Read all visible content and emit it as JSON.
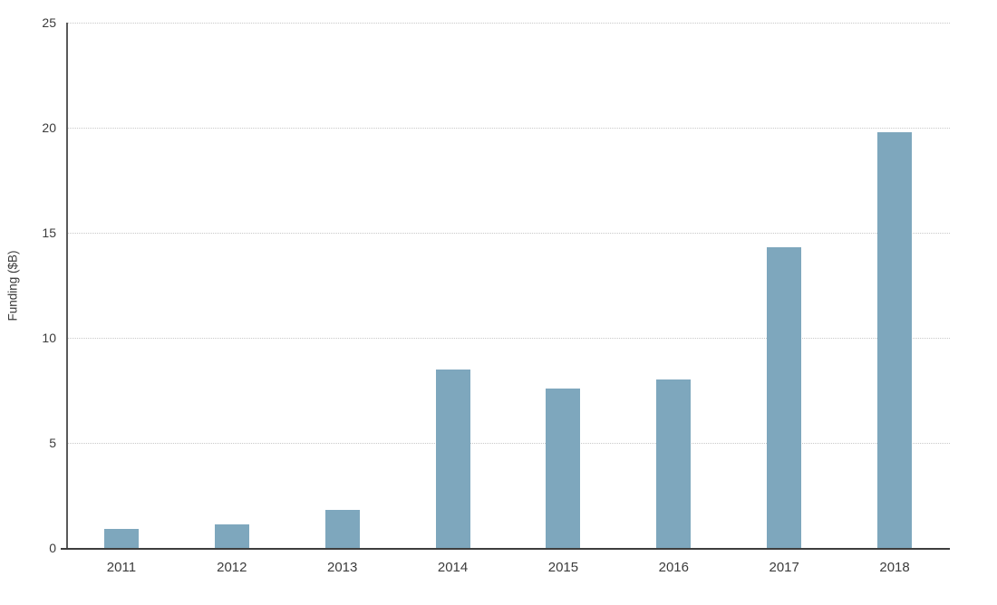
{
  "chart_data": {
    "type": "bar",
    "title": "",
    "xlabel": "",
    "ylabel": "Funding ($B)",
    "categories": [
      "2011",
      "2012",
      "2013",
      "2014",
      "2015",
      "2016",
      "2017",
      "2018"
    ],
    "values": [
      0.9,
      1.1,
      1.8,
      8.5,
      7.6,
      8.0,
      14.3,
      19.8
    ],
    "ylim": [
      0,
      25
    ],
    "yticks": [
      0,
      5,
      10,
      15,
      20,
      25
    ],
    "legend": "none",
    "grid": "horizontal-dotted",
    "bar_color": "#7ea7bd",
    "axis_color": "#4a4a4a",
    "text_color": "#3b3b3b",
    "gridline_color": "#c9c9c9",
    "background_color": "#ffffff"
  }
}
